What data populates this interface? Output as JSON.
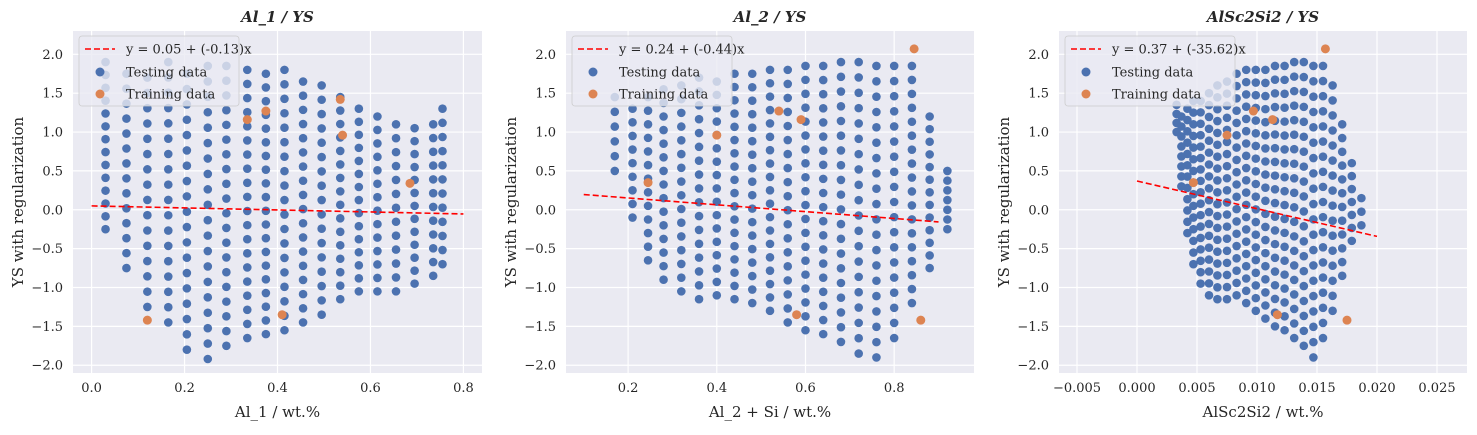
{
  "figure": {
    "legend_placement": "upper-left",
    "grid": true,
    "colors": {
      "background": "#eaeaf2",
      "grid": "#ffffff",
      "testing": "#4c72b0",
      "training": "#dd8452",
      "fit_line": "#ff0000"
    }
  },
  "chart_data": [
    {
      "type": "scatter",
      "title": "Al_1 / YS",
      "xlabel": "Al_1 / wt.%",
      "ylabel": "YS with regularization",
      "xlim": [
        -0.04,
        0.84
      ],
      "ylim": [
        -2.1,
        2.3
      ],
      "xticks": [
        0.0,
        0.2,
        0.4,
        0.6,
        0.8
      ],
      "xtick_labels": [
        "0.0",
        "0.2",
        "0.4",
        "0.6",
        "0.8"
      ],
      "yticks": [
        2.0,
        1.5,
        1.0,
        0.5,
        0.0,
        -0.5,
        -1.0,
        -1.5,
        -2.0
      ],
      "ytick_labels": [
        "2.0",
        "1.5",
        "1.0",
        "0.5",
        "0.0",
        "−0.5",
        "−1.0",
        "−1.5",
        "−2.0"
      ],
      "fit": {
        "label": "y = 0.05 + (-0.13)x",
        "intercept": 0.05,
        "slope": -0.13,
        "x_range": [
          0.0,
          0.8
        ]
      },
      "series": [
        {
          "name": "Testing data",
          "columns": [
            {
              "x": 0.03,
              "y_min": -0.25,
              "y_max": 1.9,
              "n": 14
            },
            {
              "x": 0.075,
              "y_min": -0.75,
              "y_max": 1.75,
              "n": 14
            },
            {
              "x": 0.12,
              "y_min": -1.25,
              "y_max": 1.7,
              "n": 16
            },
            {
              "x": 0.165,
              "y_min": -1.45,
              "y_max": 1.9,
              "n": 18
            },
            {
              "x": 0.205,
              "y_min": -1.8,
              "y_max": 1.75,
              "n": 19
            },
            {
              "x": 0.25,
              "y_min": -1.92,
              "y_max": 1.85,
              "n": 20
            },
            {
              "x": 0.29,
              "y_min": -1.75,
              "y_max": 1.85,
              "n": 20
            },
            {
              "x": 0.335,
              "y_min": -1.65,
              "y_max": 1.8,
              "n": 20
            },
            {
              "x": 0.375,
              "y_min": -1.6,
              "y_max": 1.75,
              "n": 20
            },
            {
              "x": 0.415,
              "y_min": -1.55,
              "y_max": 1.8,
              "n": 19
            },
            {
              "x": 0.455,
              "y_min": -1.45,
              "y_max": 1.65,
              "n": 18
            },
            {
              "x": 0.495,
              "y_min": -1.35,
              "y_max": 1.6,
              "n": 17
            },
            {
              "x": 0.535,
              "y_min": -1.15,
              "y_max": 1.45,
              "n": 16
            },
            {
              "x": 0.575,
              "y_min": -1.05,
              "y_max": 1.3,
              "n": 15
            },
            {
              "x": 0.615,
              "y_min": -1.05,
              "y_max": 1.2,
              "n": 14
            },
            {
              "x": 0.655,
              "y_min": -1.05,
              "y_max": 1.1,
              "n": 13
            },
            {
              "x": 0.695,
              "y_min": -0.95,
              "y_max": 1.05,
              "n": 13
            },
            {
              "x": 0.735,
              "y_min": -0.85,
              "y_max": 1.1,
              "n": 12
            },
            {
              "x": 0.755,
              "y_min": -0.7,
              "y_max": 1.3,
              "n": 12
            }
          ]
        },
        {
          "name": "Training data",
          "points": [
            {
              "x": 0.12,
              "y": -1.42
            },
            {
              "x": 0.335,
              "y": 1.16
            },
            {
              "x": 0.375,
              "y": 1.27
            },
            {
              "x": 0.41,
              "y": -1.35
            },
            {
              "x": 0.535,
              "y": 1.42
            },
            {
              "x": 0.54,
              "y": 0.96
            },
            {
              "x": 0.685,
              "y": 0.34
            }
          ]
        }
      ]
    },
    {
      "type": "scatter",
      "title": "Al_2 / YS",
      "xlabel": "Al_2 + Si / wt.%",
      "ylabel": "YS with regularization",
      "xlim": [
        0.06,
        0.98
      ],
      "ylim": [
        -2.1,
        2.3
      ],
      "xticks": [
        0.2,
        0.4,
        0.6,
        0.8
      ],
      "xtick_labels": [
        "0.2",
        "0.4",
        "0.6",
        "0.8"
      ],
      "yticks": [
        2.0,
        1.5,
        1.0,
        0.5,
        0.0,
        -0.5,
        -1.0,
        -1.5,
        -2.0
      ],
      "ytick_labels": [
        "2.0",
        "1.5",
        "1.0",
        "0.5",
        "0.0",
        "−0.5",
        "−1.0",
        "−1.5",
        "−2.0"
      ],
      "fit": {
        "label": "y = 0.24 + (-0.44)x",
        "intercept": 0.24,
        "slope": -0.44,
        "x_range": [
          0.1,
          0.9
        ]
      },
      "series": [
        {
          "name": "Testing data",
          "columns": [
            {
              "x": 0.17,
              "y_min": 0.5,
              "y_max": 1.45,
              "n": 6
            },
            {
              "x": 0.21,
              "y_min": -0.1,
              "y_max": 1.3,
              "n": 9
            },
            {
              "x": 0.245,
              "y_min": -0.65,
              "y_max": 1.45,
              "n": 13
            },
            {
              "x": 0.28,
              "y_min": -0.9,
              "y_max": 1.55,
              "n": 15
            },
            {
              "x": 0.32,
              "y_min": -1.05,
              "y_max": 1.6,
              "n": 16
            },
            {
              "x": 0.36,
              "y_min": -1.15,
              "y_max": 1.7,
              "n": 17
            },
            {
              "x": 0.4,
              "y_min": -1.1,
              "y_max": 1.65,
              "n": 17
            },
            {
              "x": 0.44,
              "y_min": -1.15,
              "y_max": 1.75,
              "n": 18
            },
            {
              "x": 0.48,
              "y_min": -1.2,
              "y_max": 1.75,
              "n": 18
            },
            {
              "x": 0.52,
              "y_min": -1.3,
              "y_max": 1.8,
              "n": 19
            },
            {
              "x": 0.56,
              "y_min": -1.45,
              "y_max": 1.8,
              "n": 19
            },
            {
              "x": 0.6,
              "y_min": -1.55,
              "y_max": 1.85,
              "n": 20
            },
            {
              "x": 0.64,
              "y_min": -1.6,
              "y_max": 1.85,
              "n": 20
            },
            {
              "x": 0.68,
              "y_min": -1.7,
              "y_max": 1.9,
              "n": 20
            },
            {
              "x": 0.72,
              "y_min": -1.85,
              "y_max": 1.9,
              "n": 20
            },
            {
              "x": 0.76,
              "y_min": -1.9,
              "y_max": 1.85,
              "n": 20
            },
            {
              "x": 0.8,
              "y_min": -1.65,
              "y_max": 1.85,
              "n": 19
            },
            {
              "x": 0.84,
              "y_min": -1.2,
              "y_max": 1.85,
              "n": 18
            },
            {
              "x": 0.88,
              "y_min": -0.75,
              "y_max": 1.2,
              "n": 13
            },
            {
              "x": 0.92,
              "y_min": -0.25,
              "y_max": 0.5,
              "n": 7
            }
          ]
        },
        {
          "name": "Training data",
          "points": [
            {
              "x": 0.245,
              "y": 0.35
            },
            {
              "x": 0.4,
              "y": 0.96
            },
            {
              "x": 0.54,
              "y": 1.27
            },
            {
              "x": 0.58,
              "y": -1.35
            },
            {
              "x": 0.59,
              "y": 1.16
            },
            {
              "x": 0.845,
              "y": 2.07
            },
            {
              "x": 0.86,
              "y": -1.42
            }
          ]
        }
      ]
    },
    {
      "type": "scatter",
      "title": "AlSc2Si2 / YS",
      "xlabel": "AlSc2Si2 / wt.%",
      "ylabel": "YS with regularization",
      "xlim": [
        -0.0065,
        0.0275
      ],
      "ylim": [
        -2.1,
        2.3
      ],
      "xticks": [
        -0.005,
        0.0,
        0.005,
        0.01,
        0.015,
        0.02,
        0.025
      ],
      "xtick_labels": [
        "−0.005",
        "0.000",
        "0.005",
        "0.010",
        "0.015",
        "0.020",
        "0.025"
      ],
      "yticks": [
        2.0,
        1.5,
        1.0,
        0.5,
        0.0,
        -0.5,
        -1.0,
        -1.5,
        -2.0
      ],
      "ytick_labels": [
        "2.0",
        "1.5",
        "1.0",
        "0.5",
        "0.0",
        "−0.5",
        "−1.0",
        "−1.5",
        "−2.0"
      ],
      "fit": {
        "label": "y = 0.37 + (-35.62)x",
        "intercept": 0.37,
        "slope": -35.62,
        "x_range": [
          0.0,
          0.02
        ]
      },
      "series": [
        {
          "name": "Testing data",
          "columns": [
            {
              "x": 0.0033,
              "y_min": 1.0,
              "y_max": 1.35,
              "n": 4
            },
            {
              "x": 0.0037,
              "y_min": 0.3,
              "y_max": 1.2,
              "n": 8
            },
            {
              "x": 0.0042,
              "y_min": -0.3,
              "y_max": 1.3,
              "n": 12
            },
            {
              "x": 0.0047,
              "y_min": -0.7,
              "y_max": 1.4,
              "n": 15
            },
            {
              "x": 0.0053,
              "y_min": -0.95,
              "y_max": 1.4,
              "n": 17
            },
            {
              "x": 0.006,
              "y_min": -1.1,
              "y_max": 1.5,
              "n": 18
            },
            {
              "x": 0.0067,
              "y_min": -1.15,
              "y_max": 1.6,
              "n": 19
            },
            {
              "x": 0.0075,
              "y_min": -1.15,
              "y_max": 1.65,
              "n": 19
            },
            {
              "x": 0.0083,
              "y_min": -1.1,
              "y_max": 1.75,
              "n": 19
            },
            {
              "x": 0.0091,
              "y_min": -1.2,
              "y_max": 1.8,
              "n": 20
            },
            {
              "x": 0.0099,
              "y_min": -1.3,
              "y_max": 1.8,
              "n": 20
            },
            {
              "x": 0.0107,
              "y_min": -1.4,
              "y_max": 1.8,
              "n": 20
            },
            {
              "x": 0.0115,
              "y_min": -1.5,
              "y_max": 1.85,
              "n": 20
            },
            {
              "x": 0.0123,
              "y_min": -1.55,
              "y_max": 1.85,
              "n": 20
            },
            {
              "x": 0.0131,
              "y_min": -1.65,
              "y_max": 1.9,
              "n": 20
            },
            {
              "x": 0.0139,
              "y_min": -1.75,
              "y_max": 1.9,
              "n": 20
            },
            {
              "x": 0.0147,
              "y_min": -1.9,
              "y_max": 1.85,
              "n": 20
            },
            {
              "x": 0.0155,
              "y_min": -1.65,
              "y_max": 1.85,
              "n": 19
            },
            {
              "x": 0.0163,
              "y_min": -1.3,
              "y_max": 1.6,
              "n": 16
            },
            {
              "x": 0.0171,
              "y_min": -0.85,
              "y_max": 1.1,
              "n": 12
            },
            {
              "x": 0.0179,
              "y_min": -0.4,
              "y_max": 0.6,
              "n": 7
            },
            {
              "x": 0.0187,
              "y_min": -0.2,
              "y_max": 0.15,
              "n": 3
            }
          ]
        },
        {
          "name": "Training data",
          "points": [
            {
              "x": 0.0047,
              "y": 0.35
            },
            {
              "x": 0.0075,
              "y": 0.96
            },
            {
              "x": 0.0097,
              "y": 1.27
            },
            {
              "x": 0.0113,
              "y": 1.16
            },
            {
              "x": 0.0117,
              "y": -1.35
            },
            {
              "x": 0.0157,
              "y": 2.07
            },
            {
              "x": 0.0175,
              "y": -1.42
            }
          ]
        }
      ]
    }
  ]
}
